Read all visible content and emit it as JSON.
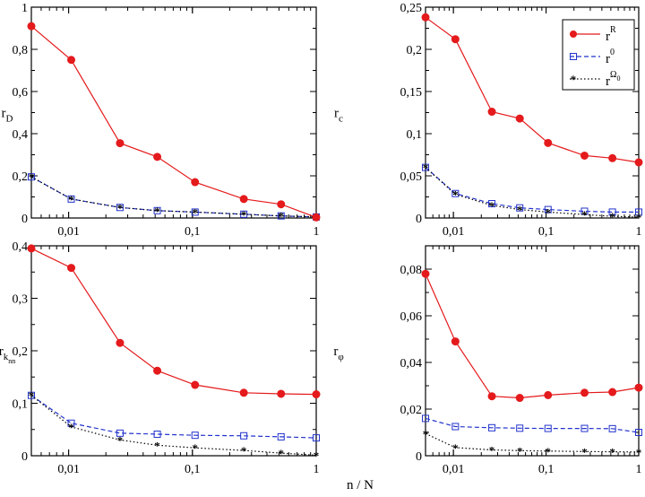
{
  "figure": {
    "xlabel": "n / N"
  },
  "chart_data": [
    {
      "type": "line",
      "ylabel": "r",
      "ylabel_sub": "D",
      "x": [
        0.005,
        0.0105,
        0.026,
        0.052,
        0.105,
        0.26,
        0.52,
        1.0
      ],
      "xscale": "log",
      "xlim": [
        0.005,
        1
      ],
      "ylim": [
        0,
        1
      ],
      "yticks": [
        0,
        0.2,
        0.4,
        0.6,
        0.8,
        1
      ],
      "ytick_labels": [
        "0",
        "0,2",
        "0,4",
        "0,6",
        "0,8",
        "1"
      ],
      "xtick_labels": [
        "0,01",
        "0,1",
        "1"
      ],
      "series": [
        {
          "name": "rR",
          "values": [
            0.91,
            0.75,
            0.355,
            0.29,
            0.17,
            0.09,
            0.065,
            0.003
          ]
        },
        {
          "name": "r0",
          "values": [
            0.195,
            0.09,
            0.05,
            0.035,
            0.028,
            0.018,
            0.01,
            0.005
          ]
        },
        {
          "name": "rOmega0",
          "values": [
            0.195,
            0.09,
            0.05,
            0.035,
            0.028,
            0.018,
            0.01,
            0.005
          ]
        }
      ]
    },
    {
      "type": "line",
      "ylabel": "r",
      "ylabel_sub": "c",
      "x": [
        0.005,
        0.0105,
        0.026,
        0.052,
        0.105,
        0.26,
        0.52,
        1.0
      ],
      "xscale": "log",
      "xlim": [
        0.005,
        1
      ],
      "ylim": [
        0,
        0.25
      ],
      "yticks": [
        0,
        0.05,
        0.1,
        0.15,
        0.2,
        0.25
      ],
      "ytick_labels": [
        "0",
        "0,05",
        "0,1",
        "0,15",
        "0,2",
        "0,25"
      ],
      "xtick_labels": [
        "0,01",
        "0,1",
        "1"
      ],
      "series": [
        {
          "name": "rR",
          "values": [
            0.238,
            0.212,
            0.126,
            0.118,
            0.089,
            0.074,
            0.071,
            0.066
          ]
        },
        {
          "name": "r0",
          "values": [
            0.06,
            0.029,
            0.017,
            0.012,
            0.01,
            0.008,
            0.007,
            0.007
          ]
        },
        {
          "name": "rOmega0",
          "values": [
            0.06,
            0.028,
            0.015,
            0.01,
            0.007,
            0.004,
            0.002,
            0.001
          ]
        }
      ]
    },
    {
      "type": "line",
      "ylabel": "r",
      "ylabel_sub": "k",
      "ylabel_subsub": "nn",
      "x": [
        0.005,
        0.0105,
        0.026,
        0.052,
        0.105,
        0.26,
        0.52,
        1.0
      ],
      "xscale": "log",
      "xlim": [
        0.005,
        1
      ],
      "ylim": [
        0,
        0.4
      ],
      "yticks": [
        0,
        0.1,
        0.2,
        0.3,
        0.4
      ],
      "ytick_labels": [
        "0",
        "0,1",
        "0,2",
        "0,3",
        "0,4"
      ],
      "xtick_labels": [
        "0,01",
        "0,1",
        "1"
      ],
      "series": [
        {
          "name": "rR",
          "values": [
            0.395,
            0.358,
            0.215,
            0.162,
            0.135,
            0.12,
            0.118,
            0.117
          ]
        },
        {
          "name": "r0",
          "values": [
            0.115,
            0.062,
            0.043,
            0.041,
            0.039,
            0.038,
            0.036,
            0.034
          ]
        },
        {
          "name": "rOmega0",
          "values": [
            0.115,
            0.055,
            0.03,
            0.02,
            0.015,
            0.01,
            0.005,
            0.001
          ]
        }
      ]
    },
    {
      "type": "line",
      "ylabel": "r",
      "ylabel_sub": "φ",
      "x": [
        0.005,
        0.0105,
        0.026,
        0.052,
        0.105,
        0.26,
        0.52,
        1.0
      ],
      "xscale": "log",
      "xlim": [
        0.005,
        1
      ],
      "ylim": [
        0,
        0.09
      ],
      "yticks": [
        0,
        0.02,
        0.04,
        0.06,
        0.08
      ],
      "ytick_labels": [
        "0",
        "0,02",
        "0,04",
        "0,06",
        "0,08"
      ],
      "xtick_labels": [
        "0,01",
        "0,1",
        "1"
      ],
      "series": [
        {
          "name": "rR",
          "values": [
            0.078,
            0.049,
            0.0255,
            0.0248,
            0.026,
            0.027,
            0.0273,
            0.0292
          ]
        },
        {
          "name": "r0",
          "values": [
            0.016,
            0.0125,
            0.012,
            0.0118,
            0.0117,
            0.0117,
            0.0116,
            0.01
          ]
        },
        {
          "name": "rOmega0",
          "values": [
            0.0095,
            0.0035,
            0.0025,
            0.0022,
            0.002,
            0.0018,
            0.0017,
            0.0016
          ]
        }
      ]
    }
  ],
  "legend": {
    "items": [
      {
        "key": "rR",
        "label": "r",
        "sup": "R",
        "color": "#e41a1c"
      },
      {
        "key": "r0",
        "label": "r",
        "sup": "0",
        "color": "#2233cc"
      },
      {
        "key": "rOmega0",
        "label": "r",
        "sup": "Ω",
        "supsub": "0",
        "color": "#000000"
      }
    ]
  }
}
